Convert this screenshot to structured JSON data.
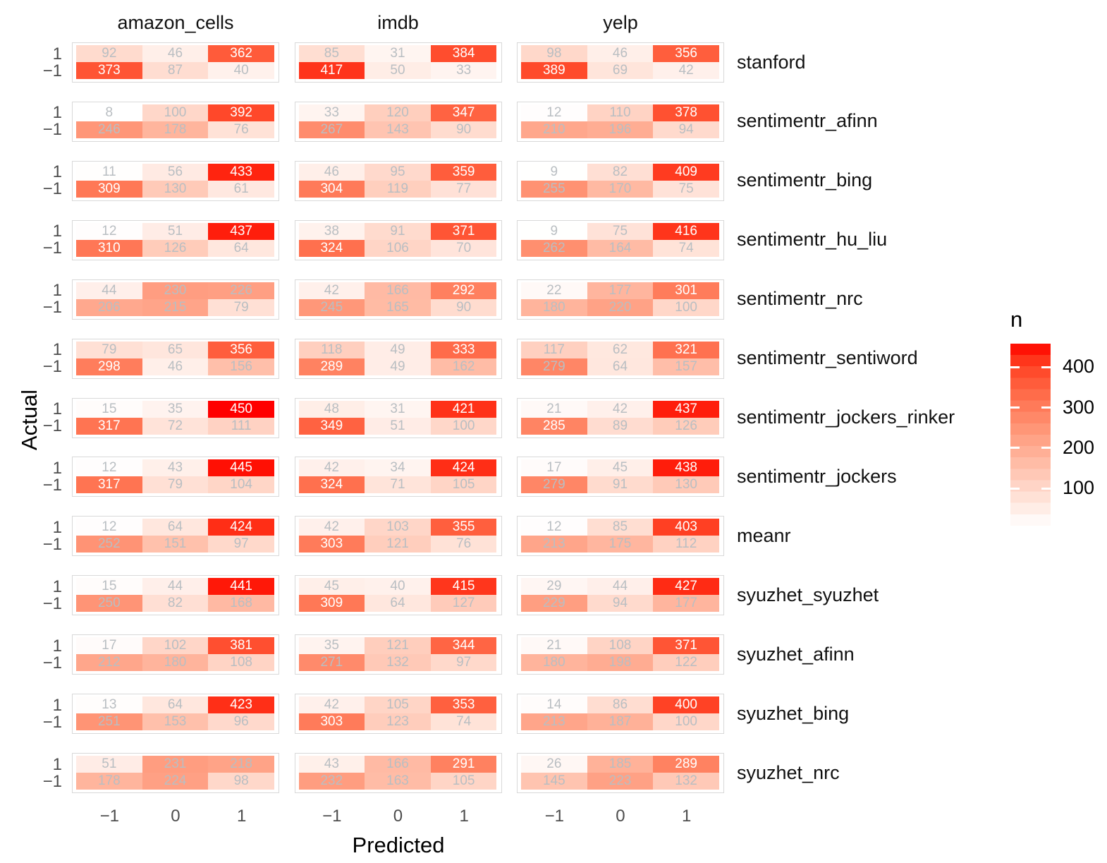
{
  "figure": {
    "x_axis_title": "Predicted",
    "y_axis_title": "Actual",
    "legend_title": "n"
  },
  "chart_data": {
    "type": "heatmap",
    "description": "Faceted confusion matrices (Actual x Predicted sentiment) for 13 methods across 3 datasets; cell fill encodes count n from white (low) to red (high).",
    "facet_columns": [
      "amazon_cells",
      "imdb",
      "yelp"
    ],
    "facet_rows": [
      "stanford",
      "sentimentr_afinn",
      "sentimentr_bing",
      "sentimentr_hu_liu",
      "sentimentr_nrc",
      "sentimentr_sentiword",
      "sentimentr_jockers_rinker",
      "sentimentr_jockers",
      "meanr",
      "syuzhet_syuzhet",
      "syuzhet_afinn",
      "syuzhet_bing",
      "syuzhet_nrc"
    ],
    "xlabel": "Predicted",
    "ylabel": "Actual",
    "x_ticks": [
      "−1",
      "0",
      "1"
    ],
    "y_ticks": [
      "1",
      "−1"
    ],
    "legend": {
      "title": "n",
      "ticks": [
        400,
        300,
        200,
        100
      ],
      "low_color": "#FFFFFF",
      "high_color": "#FF0000",
      "value_domain": [
        8,
        450
      ]
    },
    "matrices": [
      {
        "method": "stanford",
        "panels": [
          [
            [
              92,
              46,
              362
            ],
            [
              373,
              87,
              40
            ]
          ],
          [
            [
              85,
              31,
              384
            ],
            [
              417,
              50,
              33
            ]
          ],
          [
            [
              98,
              46,
              356
            ],
            [
              389,
              69,
              42
            ]
          ]
        ]
      },
      {
        "method": "sentimentr_afinn",
        "panels": [
          [
            [
              8,
              100,
              392
            ],
            [
              246,
              178,
              76
            ]
          ],
          [
            [
              33,
              120,
              347
            ],
            [
              267,
              143,
              90
            ]
          ],
          [
            [
              12,
              110,
              378
            ],
            [
              210,
              196,
              94
            ]
          ]
        ]
      },
      {
        "method": "sentimentr_bing",
        "panels": [
          [
            [
              11,
              56,
              433
            ],
            [
              309,
              130,
              61
            ]
          ],
          [
            [
              46,
              95,
              359
            ],
            [
              304,
              119,
              77
            ]
          ],
          [
            [
              9,
              82,
              409
            ],
            [
              255,
              170,
              75
            ]
          ]
        ]
      },
      {
        "method": "sentimentr_hu_liu",
        "panels": [
          [
            [
              12,
              51,
              437
            ],
            [
              310,
              126,
              64
            ]
          ],
          [
            [
              38,
              91,
              371
            ],
            [
              324,
              106,
              70
            ]
          ],
          [
            [
              9,
              75,
              416
            ],
            [
              262,
              164,
              74
            ]
          ]
        ]
      },
      {
        "method": "sentimentr_nrc",
        "panels": [
          [
            [
              44,
              230,
              226
            ],
            [
              206,
              215,
              79
            ]
          ],
          [
            [
              42,
              166,
              292
            ],
            [
              245,
              165,
              90
            ]
          ],
          [
            [
              22,
              177,
              301
            ],
            [
              180,
              220,
              100
            ]
          ]
        ]
      },
      {
        "method": "sentimentr_sentiword",
        "panels": [
          [
            [
              79,
              65,
              356
            ],
            [
              298,
              46,
              156
            ]
          ],
          [
            [
              118,
              49,
              333
            ],
            [
              289,
              49,
              162
            ]
          ],
          [
            [
              117,
              62,
              321
            ],
            [
              279,
              64,
              157
            ]
          ]
        ]
      },
      {
        "method": "sentimentr_jockers_rinker",
        "panels": [
          [
            [
              15,
              35,
              450
            ],
            [
              317,
              72,
              111
            ]
          ],
          [
            [
              48,
              31,
              421
            ],
            [
              349,
              51,
              100
            ]
          ],
          [
            [
              21,
              42,
              437
            ],
            [
              285,
              89,
              126
            ]
          ]
        ]
      },
      {
        "method": "sentimentr_jockers",
        "panels": [
          [
            [
              12,
              43,
              445
            ],
            [
              317,
              79,
              104
            ]
          ],
          [
            [
              42,
              34,
              424
            ],
            [
              324,
              71,
              105
            ]
          ],
          [
            [
              17,
              45,
              438
            ],
            [
              279,
              91,
              130
            ]
          ]
        ]
      },
      {
        "method": "meanr",
        "panels": [
          [
            [
              12,
              64,
              424
            ],
            [
              252,
              151,
              97
            ]
          ],
          [
            [
              42,
              103,
              355
            ],
            [
              303,
              121,
              76
            ]
          ],
          [
            [
              12,
              85,
              403
            ],
            [
              213,
              175,
              112
            ]
          ]
        ]
      },
      {
        "method": "syuzhet_syuzhet",
        "panels": [
          [
            [
              15,
              44,
              441
            ],
            [
              250,
              82,
              168
            ]
          ],
          [
            [
              45,
              40,
              415
            ],
            [
              309,
              64,
              127
            ]
          ],
          [
            [
              29,
              44,
              427
            ],
            [
              229,
              94,
              177
            ]
          ]
        ]
      },
      {
        "method": "syuzhet_afinn",
        "panels": [
          [
            [
              17,
              102,
              381
            ],
            [
              212,
              180,
              108
            ]
          ],
          [
            [
              35,
              121,
              344
            ],
            [
              271,
              132,
              97
            ]
          ],
          [
            [
              21,
              108,
              371
            ],
            [
              180,
              198,
              122
            ]
          ]
        ]
      },
      {
        "method": "syuzhet_bing",
        "panels": [
          [
            [
              13,
              64,
              423
            ],
            [
              251,
              153,
              96
            ]
          ],
          [
            [
              42,
              105,
              353
            ],
            [
              303,
              123,
              74
            ]
          ],
          [
            [
              14,
              86,
              400
            ],
            [
              213,
              187,
              100
            ]
          ]
        ]
      },
      {
        "method": "syuzhet_nrc",
        "panels": [
          [
            [
              51,
              231,
              218
            ],
            [
              178,
              224,
              98
            ]
          ],
          [
            [
              43,
              166,
              291
            ],
            [
              232,
              163,
              105
            ]
          ],
          [
            [
              26,
              185,
              289
            ],
            [
              145,
              223,
              132
            ]
          ]
        ]
      }
    ]
  }
}
